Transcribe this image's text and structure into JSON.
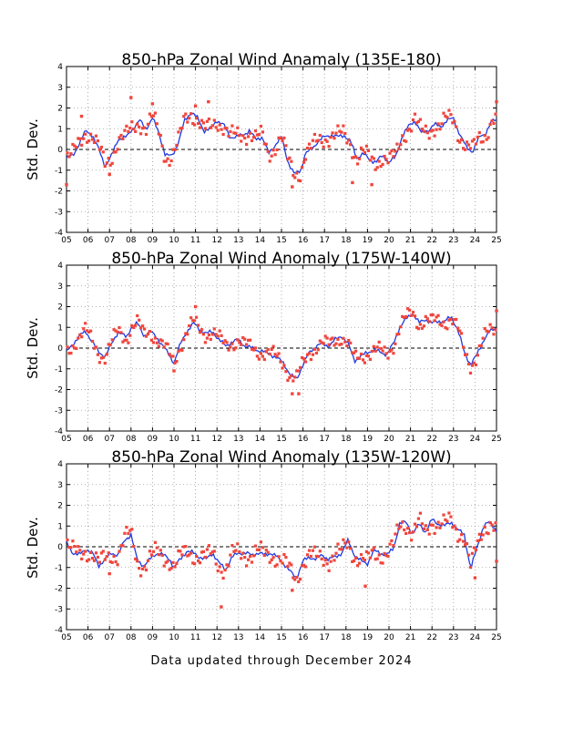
{
  "footer": "Data updated through December 2024",
  "colors": {
    "line": "#1f3ae0",
    "points": "#f0463c",
    "frame": "#000000",
    "grid": "#9a9a9a"
  },
  "chart_data": [
    {
      "type": "scatter",
      "title": "850-hPa Zonal Wind Anamaly (135E-180)",
      "ylabel": "Std. Dev.",
      "ylim": [
        -4,
        4
      ],
      "xlim": [
        2005,
        2025
      ],
      "x_ticks": [
        "05",
        "06",
        "07",
        "08",
        "09",
        "10",
        "11",
        "12",
        "13",
        "14",
        "15",
        "16",
        "17",
        "18",
        "19",
        "20",
        "21",
        "22",
        "23",
        "24",
        "25"
      ],
      "y_ticks": [
        "4",
        "3",
        "2",
        "1",
        "0",
        "-1",
        "-2",
        "-3",
        "-4"
      ],
      "grid": true,
      "line_anchors": [
        [
          2005.0,
          -0.4
        ],
        [
          2005.3,
          -0.3
        ],
        [
          2005.6,
          0.3
        ],
        [
          2005.9,
          0.9
        ],
        [
          2006.2,
          0.7
        ],
        [
          2006.5,
          0.0
        ],
        [
          2006.8,
          -0.8
        ],
        [
          2007.1,
          -0.3
        ],
        [
          2007.4,
          0.5
        ],
        [
          2007.8,
          0.6
        ],
        [
          2008.0,
          0.9
        ],
        [
          2008.4,
          1.4
        ],
        [
          2008.7,
          1.0
        ],
        [
          2009.0,
          1.5
        ],
        [
          2009.3,
          0.8
        ],
        [
          2009.6,
          -0.3
        ],
        [
          2009.9,
          -0.3
        ],
        [
          2010.2,
          0.3
        ],
        [
          2010.5,
          1.4
        ],
        [
          2010.8,
          1.8
        ],
        [
          2011.1,
          1.5
        ],
        [
          2011.4,
          0.9
        ],
        [
          2011.7,
          1.0
        ],
        [
          2012.0,
          1.4
        ],
        [
          2012.3,
          1.2
        ],
        [
          2012.6,
          0.6
        ],
        [
          2012.9,
          0.6
        ],
        [
          2013.2,
          0.7
        ],
        [
          2013.5,
          0.9
        ],
        [
          2013.8,
          0.5
        ],
        [
          2014.1,
          0.6
        ],
        [
          2014.4,
          -0.2
        ],
        [
          2014.7,
          0.2
        ],
        [
          2015.0,
          0.6
        ],
        [
          2015.3,
          -0.6
        ],
        [
          2015.6,
          -1.2
        ],
        [
          2015.9,
          -1.0
        ],
        [
          2016.1,
          -0.2
        ],
        [
          2016.4,
          0.0
        ],
        [
          2016.7,
          0.4
        ],
        [
          2017.0,
          0.6
        ],
        [
          2017.3,
          0.7
        ],
        [
          2017.6,
          0.6
        ],
        [
          2017.9,
          0.7
        ],
        [
          2018.2,
          0.4
        ],
        [
          2018.5,
          -0.4
        ],
        [
          2018.8,
          -0.2
        ],
        [
          2019.1,
          -0.5
        ],
        [
          2019.4,
          -0.6
        ],
        [
          2019.7,
          -0.3
        ],
        [
          2020.0,
          -0.6
        ],
        [
          2020.3,
          -0.4
        ],
        [
          2020.6,
          0.6
        ],
        [
          2020.9,
          1.1
        ],
        [
          2021.2,
          1.4
        ],
        [
          2021.5,
          0.8
        ],
        [
          2021.8,
          0.9
        ],
        [
          2022.1,
          1.2
        ],
        [
          2022.4,
          1.1
        ],
        [
          2022.7,
          1.4
        ],
        [
          2023.0,
          1.5
        ],
        [
          2023.3,
          0.7
        ],
        [
          2023.6,
          0.1
        ],
        [
          2023.9,
          -0.1
        ],
        [
          2024.2,
          0.6
        ],
        [
          2024.5,
          0.8
        ],
        [
          2024.8,
          1.4
        ]
      ],
      "scatter_highlights": [
        [
          2005.0,
          -1.7
        ],
        [
          2005.7,
          1.6
        ],
        [
          2007.0,
          -1.2
        ],
        [
          2008.0,
          2.5
        ],
        [
          2009.0,
          2.2
        ],
        [
          2011.0,
          2.1
        ],
        [
          2011.6,
          2.3
        ],
        [
          2015.5,
          -1.8
        ],
        [
          2018.3,
          -1.6
        ],
        [
          2019.2,
          -1.7
        ],
        [
          2025.0,
          2.3
        ]
      ],
      "scatter_spread": 0.38,
      "scatter_points_per_year": 12
    },
    {
      "type": "scatter",
      "title": "850-hPa Zonal Wind Anomaly (175W-140W)",
      "ylabel": "Std. Dev.",
      "ylim": [
        -4,
        4
      ],
      "xlim": [
        2005,
        2025
      ],
      "x_ticks": [
        "05",
        "06",
        "07",
        "08",
        "09",
        "10",
        "11",
        "12",
        "13",
        "14",
        "15",
        "16",
        "17",
        "18",
        "19",
        "20",
        "21",
        "22",
        "23",
        "24",
        "25"
      ],
      "y_ticks": [
        "4",
        "3",
        "2",
        "1",
        "0",
        "-1",
        "-2",
        "-3",
        "-4"
      ],
      "grid": true,
      "line_anchors": [
        [
          2005.0,
          -0.2
        ],
        [
          2005.3,
          0.2
        ],
        [
          2005.6,
          0.6
        ],
        [
          2005.9,
          0.8
        ],
        [
          2006.2,
          0.3
        ],
        [
          2006.5,
          -0.2
        ],
        [
          2006.8,
          -0.4
        ],
        [
          2007.1,
          0.2
        ],
        [
          2007.4,
          0.8
        ],
        [
          2007.8,
          0.5
        ],
        [
          2008.0,
          1.0
        ],
        [
          2008.3,
          1.2
        ],
        [
          2008.6,
          0.6
        ],
        [
          2008.9,
          0.8
        ],
        [
          2009.2,
          0.5
        ],
        [
          2009.5,
          0.1
        ],
        [
          2009.8,
          -0.4
        ],
        [
          2010.0,
          -0.7
        ],
        [
          2010.3,
          0.2
        ],
        [
          2010.6,
          0.8
        ],
        [
          2010.9,
          1.2
        ],
        [
          2011.2,
          0.9
        ],
        [
          2011.5,
          0.7
        ],
        [
          2011.8,
          0.8
        ],
        [
          2012.1,
          0.4
        ],
        [
          2012.4,
          0.1
        ],
        [
          2012.7,
          0.3
        ],
        [
          2013.0,
          0.4
        ],
        [
          2013.3,
          0.1
        ],
        [
          2013.6,
          0.0
        ],
        [
          2013.9,
          -0.1
        ],
        [
          2014.2,
          -0.2
        ],
        [
          2014.5,
          -0.3
        ],
        [
          2014.8,
          -0.5
        ],
        [
          2015.1,
          -0.7
        ],
        [
          2015.4,
          -1.3
        ],
        [
          2015.7,
          -1.5
        ],
        [
          2016.0,
          -0.8
        ],
        [
          2016.3,
          -0.2
        ],
        [
          2016.6,
          0.1
        ],
        [
          2016.9,
          0.2
        ],
        [
          2017.2,
          0.1
        ],
        [
          2017.5,
          0.4
        ],
        [
          2017.8,
          0.6
        ],
        [
          2018.1,
          0.2
        ],
        [
          2018.4,
          -0.6
        ],
        [
          2018.7,
          -0.4
        ],
        [
          2019.0,
          -0.2
        ],
        [
          2019.3,
          -0.1
        ],
        [
          2019.6,
          -0.2
        ],
        [
          2019.9,
          -0.3
        ],
        [
          2020.2,
          0.2
        ],
        [
          2020.5,
          1.0
        ],
        [
          2020.8,
          1.4
        ],
        [
          2021.1,
          1.7
        ],
        [
          2021.4,
          1.2
        ],
        [
          2021.7,
          1.4
        ],
        [
          2022.0,
          1.2
        ],
        [
          2022.3,
          1.3
        ],
        [
          2022.6,
          1.3
        ],
        [
          2022.9,
          1.5
        ],
        [
          2023.2,
          0.9
        ],
        [
          2023.5,
          -0.2
        ],
        [
          2023.8,
          -0.8
        ],
        [
          2024.1,
          -0.3
        ],
        [
          2024.4,
          0.4
        ],
        [
          2024.7,
          0.8
        ],
        [
          2025.0,
          1.0
        ]
      ],
      "scatter_highlights": [
        [
          2010.0,
          -1.1
        ],
        [
          2011.0,
          2.0
        ],
        [
          2015.5,
          -2.2
        ],
        [
          2015.8,
          -2.2
        ],
        [
          2025.0,
          1.8
        ]
      ],
      "scatter_spread": 0.32,
      "scatter_points_per_year": 12
    },
    {
      "type": "scatter",
      "title": "850-hPa Zonal Wind Anomaly (135W-120W)",
      "ylabel": "Std. Dev.",
      "ylim": [
        -4,
        4
      ],
      "xlim": [
        2005,
        2025
      ],
      "x_ticks": [
        "05",
        "06",
        "07",
        "08",
        "09",
        "10",
        "11",
        "12",
        "13",
        "14",
        "15",
        "16",
        "17",
        "18",
        "19",
        "20",
        "21",
        "22",
        "23",
        "24",
        "25"
      ],
      "y_ticks": [
        "4",
        "3",
        "2",
        "1",
        "0",
        "-1",
        "-2",
        "-3",
        "-4"
      ],
      "grid": true,
      "line_anchors": [
        [
          2005.0,
          0.2
        ],
        [
          2005.3,
          -0.3
        ],
        [
          2005.6,
          -0.4
        ],
        [
          2005.9,
          -0.1
        ],
        [
          2006.2,
          -0.3
        ],
        [
          2006.5,
          -0.9
        ],
        [
          2006.8,
          -0.6
        ],
        [
          2007.1,
          -0.3
        ],
        [
          2007.4,
          -0.4
        ],
        [
          2007.7,
          0.3
        ],
        [
          2008.0,
          0.6
        ],
        [
          2008.3,
          -0.7
        ],
        [
          2008.6,
          -0.9
        ],
        [
          2008.9,
          -0.6
        ],
        [
          2009.2,
          -0.3
        ],
        [
          2009.5,
          -0.4
        ],
        [
          2009.8,
          -0.6
        ],
        [
          2010.0,
          -1.0
        ],
        [
          2010.3,
          -0.6
        ],
        [
          2010.6,
          -0.2
        ],
        [
          2010.9,
          -0.3
        ],
        [
          2011.2,
          -0.5
        ],
        [
          2011.5,
          -0.6
        ],
        [
          2011.8,
          -0.3
        ],
        [
          2012.1,
          -0.8
        ],
        [
          2012.4,
          -1.1
        ],
        [
          2012.7,
          -0.5
        ],
        [
          2013.0,
          -0.3
        ],
        [
          2013.3,
          -0.3
        ],
        [
          2013.6,
          -0.4
        ],
        [
          2013.9,
          -0.3
        ],
        [
          2014.2,
          -0.4
        ],
        [
          2014.5,
          -0.3
        ],
        [
          2014.8,
          -0.5
        ],
        [
          2015.1,
          -0.8
        ],
        [
          2015.4,
          -1.2
        ],
        [
          2015.7,
          -1.5
        ],
        [
          2016.0,
          -0.7
        ],
        [
          2016.3,
          -0.5
        ],
        [
          2016.6,
          -0.6
        ],
        [
          2016.9,
          -0.4
        ],
        [
          2017.2,
          -0.6
        ],
        [
          2017.5,
          -0.5
        ],
        [
          2017.8,
          -0.3
        ],
        [
          2018.1,
          0.3
        ],
        [
          2018.4,
          -0.4
        ],
        [
          2018.7,
          -0.7
        ],
        [
          2019.0,
          -0.8
        ],
        [
          2019.3,
          -0.2
        ],
        [
          2019.6,
          -0.3
        ],
        [
          2019.9,
          -0.4
        ],
        [
          2020.2,
          -0.1
        ],
        [
          2020.5,
          1.1
        ],
        [
          2020.8,
          1.2
        ],
        [
          2021.1,
          0.6
        ],
        [
          2021.4,
          1.1
        ],
        [
          2021.7,
          0.7
        ],
        [
          2022.0,
          1.3
        ],
        [
          2022.3,
          1.1
        ],
        [
          2022.6,
          1.0
        ],
        [
          2022.9,
          1.2
        ],
        [
          2023.2,
          0.8
        ],
        [
          2023.5,
          0.6
        ],
        [
          2023.8,
          -1.1
        ],
        [
          2024.1,
          0.0
        ],
        [
          2024.4,
          1.0
        ],
        [
          2024.7,
          1.2
        ],
        [
          2025.0,
          0.8
        ]
      ],
      "scatter_highlights": [
        [
          2007.0,
          -1.3
        ],
        [
          2012.2,
          -2.9
        ],
        [
          2015.5,
          -2.1
        ],
        [
          2018.9,
          -1.9
        ],
        [
          2024.0,
          -1.5
        ],
        [
          2025.0,
          -0.7
        ]
      ],
      "scatter_spread": 0.4,
      "scatter_points_per_year": 12
    }
  ]
}
